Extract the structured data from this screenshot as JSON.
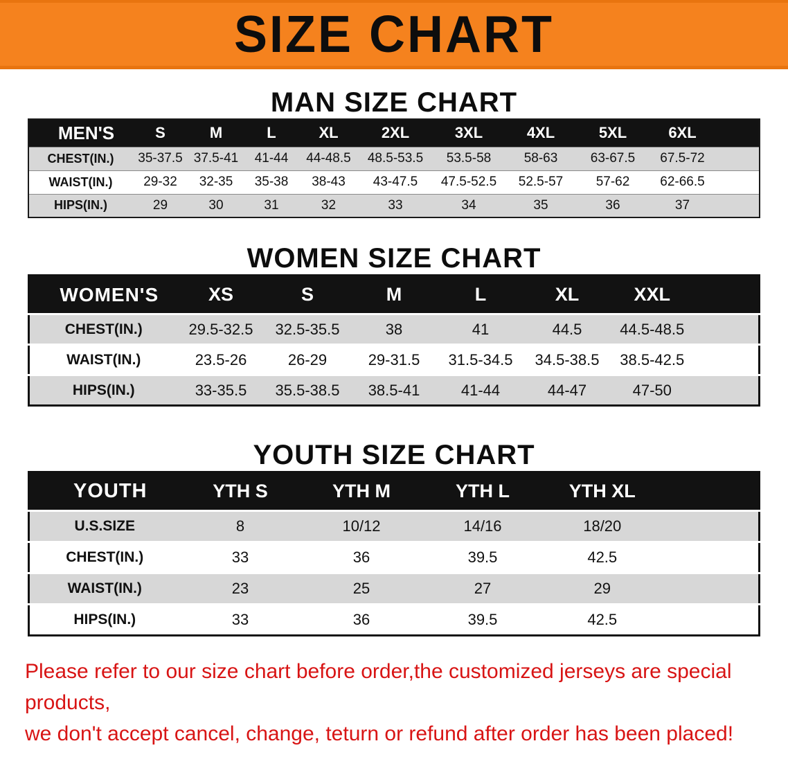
{
  "banner": {
    "title": "SIZE CHART"
  },
  "colors": {
    "banner_bg": "#f5821e",
    "table_header_bg": "#121212",
    "row_gray": "#d7d7d7",
    "disclaimer_red": "#d81414"
  },
  "men": {
    "heading": "MAN SIZE CHART",
    "table": {
      "header": [
        "MEN'S",
        "S",
        "M",
        "L",
        "XL",
        "2XL",
        "3XL",
        "4XL",
        "5XL",
        "6XL"
      ],
      "rows": [
        {
          "label": "CHEST(IN.)",
          "values": [
            "35-37.5",
            "37.5-41",
            "41-44",
            "44-48.5",
            "48.5-53.5",
            "53.5-58",
            "58-63",
            "63-67.5",
            "67.5-72"
          ]
        },
        {
          "label": "WAIST(IN.)",
          "values": [
            "29-32",
            "32-35",
            "35-38",
            "38-43",
            "43-47.5",
            "47.5-52.5",
            "52.5-57",
            "57-62",
            "62-66.5"
          ]
        },
        {
          "label": "HIPS(IN.)",
          "values": [
            "29",
            "30",
            "31",
            "32",
            "33",
            "34",
            "35",
            "36",
            "37"
          ]
        }
      ]
    }
  },
  "women": {
    "heading": "WOMEN SIZE CHART",
    "table": {
      "header": [
        "WOMEN'S",
        "XS",
        "S",
        "M",
        "L",
        "XL",
        "XXL"
      ],
      "rows": [
        {
          "label": "CHEST(IN.)",
          "values": [
            "29.5-32.5",
            "32.5-35.5",
            "38",
            "41",
            "44.5",
            "44.5-48.5"
          ]
        },
        {
          "label": "WAIST(IN.)",
          "values": [
            "23.5-26",
            "26-29",
            "29-31.5",
            "31.5-34.5",
            "34.5-38.5",
            "38.5-42.5"
          ]
        },
        {
          "label": "HIPS(IN.)",
          "values": [
            "33-35.5",
            "35.5-38.5",
            "38.5-41",
            "41-44",
            "44-47",
            "47-50"
          ]
        }
      ]
    }
  },
  "youth": {
    "heading": "YOUTH SIZE CHART",
    "table": {
      "header": [
        "YOUTH",
        "YTH S",
        "YTH M",
        "YTH L",
        "YTH XL"
      ],
      "rows": [
        {
          "label": "U.S.SIZE",
          "values": [
            "8",
            "10/12",
            "14/16",
            "18/20"
          ]
        },
        {
          "label": "CHEST(IN.)",
          "values": [
            "33",
            "36",
            "39.5",
            "42.5"
          ]
        },
        {
          "label": "WAIST(IN.)",
          "values": [
            "23",
            "25",
            "27",
            "29"
          ]
        },
        {
          "label": "HIPS(IN.)",
          "values": [
            "33",
            "36",
            "39.5",
            "42.5"
          ]
        }
      ]
    }
  },
  "disclaimer": {
    "line1": "Please refer to our size chart before order,the customized jerseys are special products,",
    "line2": "we don't accept cancel, change, teturn or refund after order has been placed!"
  }
}
